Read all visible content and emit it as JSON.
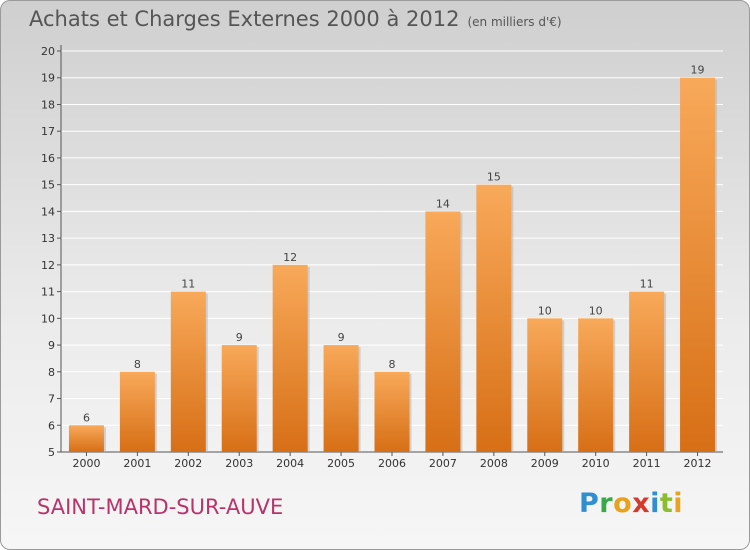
{
  "title": {
    "main": "Achats et Charges Externes 2000 à 2012",
    "unit": "(en milliers d'€)"
  },
  "town": "SAINT-MARD-SUR-AUVE",
  "logo": {
    "letters": [
      "P",
      "r",
      "o",
      "x",
      "i",
      "t",
      "i"
    ],
    "colors": [
      "#2f8fd0",
      "#3aa84a",
      "#e8a21c",
      "#d43b2a",
      "#2f8fd0",
      "#8bbd2e",
      "#e8a21c"
    ]
  },
  "colors": {
    "bar_top": "#f8a95a",
    "bar_bottom": "#d76f16",
    "gridline": "#ffffff"
  },
  "chart_data": {
    "type": "bar",
    "categories": [
      "2000",
      "2001",
      "2002",
      "2003",
      "2004",
      "2005",
      "2006",
      "2007",
      "2008",
      "2009",
      "2010",
      "2011",
      "2012"
    ],
    "values": [
      6,
      8,
      11,
      9,
      12,
      9,
      8,
      14,
      15,
      10,
      10,
      11,
      19
    ],
    "ylim": [
      5,
      20
    ],
    "yticks": [
      5,
      6,
      7,
      8,
      9,
      10,
      11,
      12,
      13,
      14,
      15,
      16,
      17,
      18,
      19,
      20
    ],
    "grid": true
  }
}
